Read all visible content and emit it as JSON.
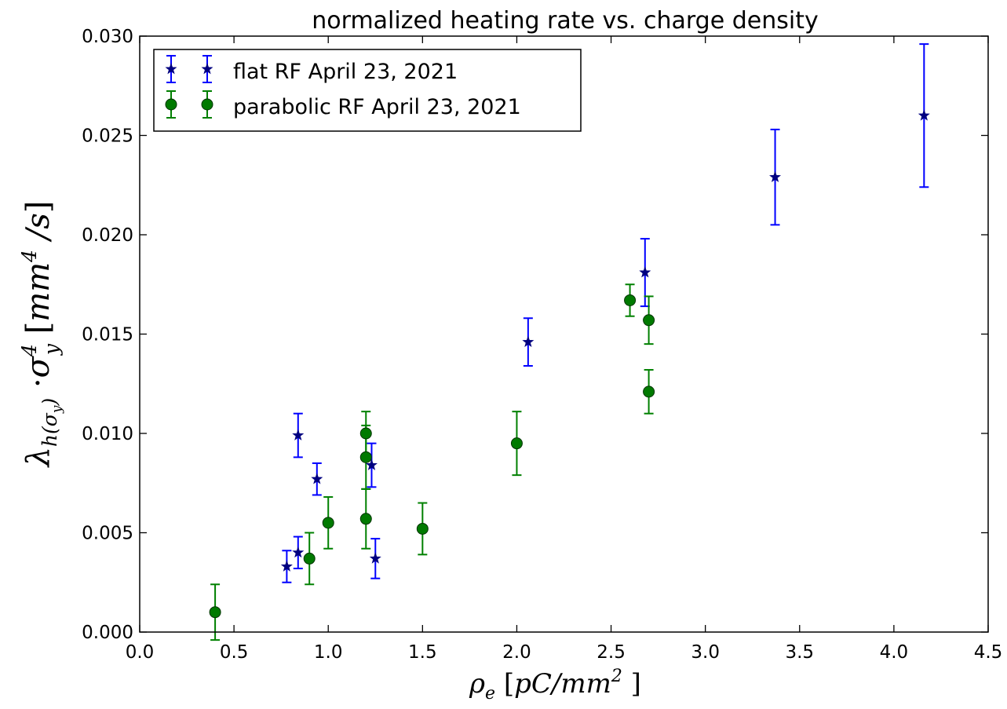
{
  "chart_data": {
    "type": "scatter",
    "title": "normalized heating rate vs. charge density",
    "xlabel": "ρe [pC/mm²]",
    "ylabel": "λh(σy)·σy⁴ [mm⁴/s]",
    "xlim": [
      0.0,
      4.5
    ],
    "ylim": [
      0.0,
      0.03
    ],
    "xticks": [
      "0.0",
      "0.5",
      "1.0",
      "1.5",
      "2.0",
      "2.5",
      "3.0",
      "3.5",
      "4.0",
      "4.5"
    ],
    "yticks": [
      "0.000",
      "0.005",
      "0.010",
      "0.015",
      "0.020",
      "0.025",
      "0.030"
    ],
    "grid": false,
    "legend_position": "top-left",
    "series": [
      {
        "name": "flat RF April 23, 2021",
        "color": "#0000ff",
        "marker_color": "#000080",
        "marker": "star",
        "points": [
          {
            "x": 0.78,
            "y": 0.0033,
            "yerr": 0.0008
          },
          {
            "x": 0.84,
            "y": 0.004,
            "yerr": 0.0008
          },
          {
            "x": 0.84,
            "y": 0.0099,
            "yerr": 0.0011
          },
          {
            "x": 0.94,
            "y": 0.0077,
            "yerr": 0.0008
          },
          {
            "x": 1.23,
            "y": 0.0084,
            "yerr": 0.0011
          },
          {
            "x": 1.25,
            "y": 0.0037,
            "yerr": 0.001
          },
          {
            "x": 2.06,
            "y": 0.0146,
            "yerr": 0.0012
          },
          {
            "x": 2.68,
            "y": 0.0181,
            "yerr": 0.0017
          },
          {
            "x": 3.37,
            "y": 0.0229,
            "yerr": 0.0024
          },
          {
            "x": 4.16,
            "y": 0.026,
            "yerr": 0.0036
          }
        ]
      },
      {
        "name": "parabolic RF April 23, 2021",
        "color": "#008000",
        "marker_color": "#007a00",
        "marker": "circle",
        "points": [
          {
            "x": 0.4,
            "y": 0.001,
            "yerr": 0.0014
          },
          {
            "x": 0.9,
            "y": 0.0037,
            "yerr": 0.0013
          },
          {
            "x": 1.0,
            "y": 0.0055,
            "yerr": 0.0013
          },
          {
            "x": 1.2,
            "y": 0.0057,
            "yerr": 0.0015
          },
          {
            "x": 1.2,
            "y": 0.0088,
            "yerr": 0.0016
          },
          {
            "x": 1.2,
            "y": 0.01,
            "yerr": 0.0011
          },
          {
            "x": 1.5,
            "y": 0.0052,
            "yerr": 0.0013
          },
          {
            "x": 2.0,
            "y": 0.0095,
            "yerr": 0.0016
          },
          {
            "x": 2.6,
            "y": 0.0167,
            "yerr": 0.0008
          },
          {
            "x": 2.7,
            "y": 0.0157,
            "yerr": 0.0012
          },
          {
            "x": 2.7,
            "y": 0.0121,
            "yerr": 0.0011
          }
        ]
      }
    ]
  }
}
